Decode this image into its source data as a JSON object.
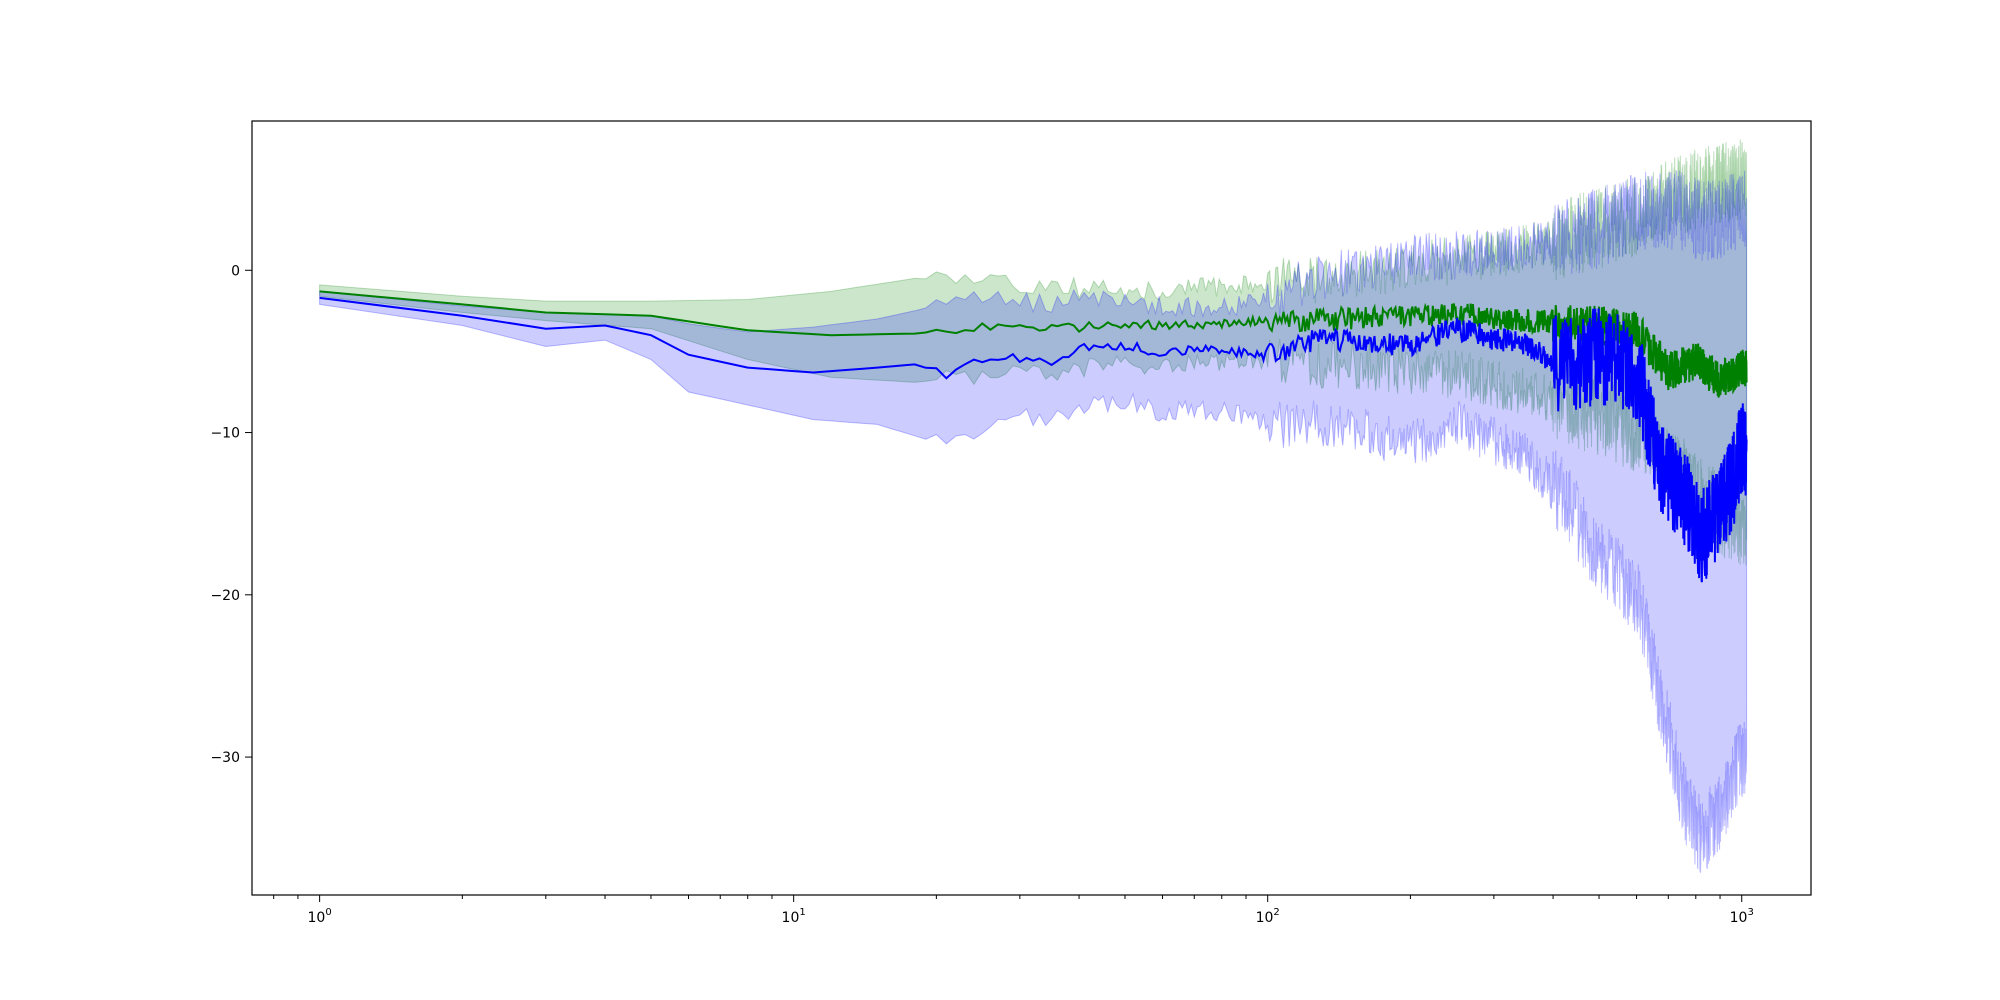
{
  "chart_data": {
    "type": "line",
    "title": "",
    "xlabel": "",
    "ylabel": "",
    "x_scale": "log",
    "xlim": [
      0.72,
      1400
    ],
    "ylim": [
      -38.5,
      9.2
    ],
    "grid": false,
    "legend": "none",
    "x_ticks": [
      {
        "value": 1,
        "base": "10",
        "exp": "0"
      },
      {
        "value": 10,
        "base": "10",
        "exp": "1"
      },
      {
        "value": 100,
        "base": "10",
        "exp": "2"
      },
      {
        "value": 1000,
        "base": "10",
        "exp": "3"
      }
    ],
    "y_ticks": [
      {
        "value": 0,
        "label": "0"
      },
      {
        "value": -10,
        "label": "−10"
      },
      {
        "value": -20,
        "label": "−20"
      },
      {
        "value": -30,
        "label": "−30"
      }
    ],
    "series": [
      {
        "color": "#008000",
        "band_color": "#008000",
        "band_opacity": 0.2,
        "points": [
          {
            "x": 1,
            "y": -1.3,
            "lo": -1.6,
            "hi": -0.9
          },
          {
            "x": 2,
            "y": -2.1,
            "lo": -2.6,
            "hi": -1.6
          },
          {
            "x": 3,
            "y": -2.6,
            "lo": -3.1,
            "hi": -1.9
          },
          {
            "x": 5,
            "y": -2.8,
            "lo": -3.6,
            "hi": -1.9
          },
          {
            "x": 8,
            "y": -3.7,
            "lo": -5.5,
            "hi": -1.8
          },
          {
            "x": 12,
            "y": -4.0,
            "lo": -6.6,
            "hi": -1.3
          },
          {
            "x": 18,
            "y": -3.9,
            "lo": -6.9,
            "hi": -0.5
          },
          {
            "x": 25,
            "y": -3.5,
            "lo": -6.5,
            "hi": -0.7
          },
          {
            "x": 35,
            "y": -3.6,
            "lo": -6.3,
            "hi": -1.0
          },
          {
            "x": 50,
            "y": -3.3,
            "lo": -5.8,
            "hi": -1.3
          },
          {
            "x": 70,
            "y": -3.4,
            "lo": -5.7,
            "hi": -1.1
          },
          {
            "x": 100,
            "y": -3.1,
            "lo": -5.5,
            "hi": -0.8
          },
          {
            "x": 150,
            "y": -3.0,
            "lo": -5.9,
            "hi": -0.4
          },
          {
            "x": 200,
            "y": -2.9,
            "lo": -6.2,
            "hi": 0.3
          },
          {
            "x": 250,
            "y": -2.6,
            "lo": -6.4,
            "hi": 0.6
          },
          {
            "x": 300,
            "y": -3.0,
            "lo": -7.0,
            "hi": 1.0
          },
          {
            "x": 400,
            "y": -3.2,
            "lo": -8.0,
            "hi": 1.8
          },
          {
            "x": 500,
            "y": -3.4,
            "lo": -9.0,
            "hi": 2.6
          },
          {
            "x": 600,
            "y": -3.7,
            "lo": -10.0,
            "hi": 3.4
          },
          {
            "x": 700,
            "y": -6.2,
            "lo": -12.0,
            "hi": 4.4
          },
          {
            "x": 800,
            "y": -5.6,
            "lo": -13.5,
            "hi": 5.0
          },
          {
            "x": 900,
            "y": -6.8,
            "lo": -15.0,
            "hi": 5.4
          },
          {
            "x": 1000,
            "y": -6.0,
            "lo": -16.0,
            "hi": 5.6
          }
        ]
      },
      {
        "color": "#0000ff",
        "band_color": "#0000ff",
        "band_opacity": 0.2,
        "points": [
          {
            "x": 1,
            "y": -1.7,
            "lo": -2.1,
            "hi": -1.3
          },
          {
            "x": 2,
            "y": -2.8,
            "lo": -3.4,
            "hi": -2.2
          },
          {
            "x": 3,
            "y": -3.6,
            "lo": -4.7,
            "hi": -2.6
          },
          {
            "x": 4,
            "y": -3.4,
            "lo": -4.3,
            "hi": -2.7
          },
          {
            "x": 5,
            "y": -4.0,
            "lo": -5.5,
            "hi": -2.8
          },
          {
            "x": 6,
            "y": -5.2,
            "lo": -7.5,
            "hi": -3.3
          },
          {
            "x": 8,
            "y": -6.0,
            "lo": -8.3,
            "hi": -3.8
          },
          {
            "x": 11,
            "y": -6.3,
            "lo": -9.2,
            "hi": -3.5
          },
          {
            "x": 15,
            "y": -6.0,
            "lo": -9.5,
            "hi": -3.0
          },
          {
            "x": 18,
            "y": -5.8,
            "lo": -10.2,
            "hi": -2.5
          },
          {
            "x": 21,
            "y": -6.4,
            "lo": -10.8,
            "hi": -2.0
          },
          {
            "x": 25,
            "y": -5.5,
            "lo": -9.6,
            "hi": -1.8
          },
          {
            "x": 30,
            "y": -5.4,
            "lo": -9.2,
            "hi": -1.9
          },
          {
            "x": 35,
            "y": -5.6,
            "lo": -9.0,
            "hi": -2.2
          },
          {
            "x": 40,
            "y": -4.8,
            "lo": -8.5,
            "hi": -1.5
          },
          {
            "x": 50,
            "y": -4.6,
            "lo": -8.0,
            "hi": -2.0
          },
          {
            "x": 60,
            "y": -5.1,
            "lo": -8.8,
            "hi": -2.1
          },
          {
            "x": 70,
            "y": -4.8,
            "lo": -8.6,
            "hi": -2.3
          },
          {
            "x": 85,
            "y": -5.0,
            "lo": -8.8,
            "hi": -2.2
          },
          {
            "x": 100,
            "y": -5.3,
            "lo": -9.5,
            "hi": -1.6
          },
          {
            "x": 130,
            "y": -4.2,
            "lo": -9.4,
            "hi": -0.4
          },
          {
            "x": 160,
            "y": -4.5,
            "lo": -10.0,
            "hi": 0.0
          },
          {
            "x": 200,
            "y": -4.7,
            "lo": -10.8,
            "hi": 0.8
          },
          {
            "x": 250,
            "y": -3.6,
            "lo": -9.5,
            "hi": 0.9
          },
          {
            "x": 300,
            "y": -4.2,
            "lo": -10.5,
            "hi": 1.2
          },
          {
            "x": 350,
            "y": -4.6,
            "lo": -11.5,
            "hi": 1.5
          },
          {
            "x": 420,
            "y": -6.0,
            "lo": -14.0,
            "hi": 2.0
          },
          {
            "x": 500,
            "y": -5.2,
            "lo": -17.5,
            "hi": 2.6
          },
          {
            "x": 600,
            "y": -6.2,
            "lo": -20.0,
            "hi": 3.5
          },
          {
            "x": 680,
            "y": -12.5,
            "lo": -27.0,
            "hi": 3.8
          },
          {
            "x": 760,
            "y": -14.0,
            "lo": -33.0,
            "hi": 3.6
          },
          {
            "x": 820,
            "y": -16.5,
            "lo": -35.0,
            "hi": 3.0
          },
          {
            "x": 900,
            "y": -15.0,
            "lo": -33.5,
            "hi": 3.2
          },
          {
            "x": 960,
            "y": -13.0,
            "lo": -31.0,
            "hi": 3.5
          },
          {
            "x": 1000,
            "y": -11.0,
            "lo": -30.0,
            "hi": 3.8
          }
        ]
      }
    ]
  }
}
